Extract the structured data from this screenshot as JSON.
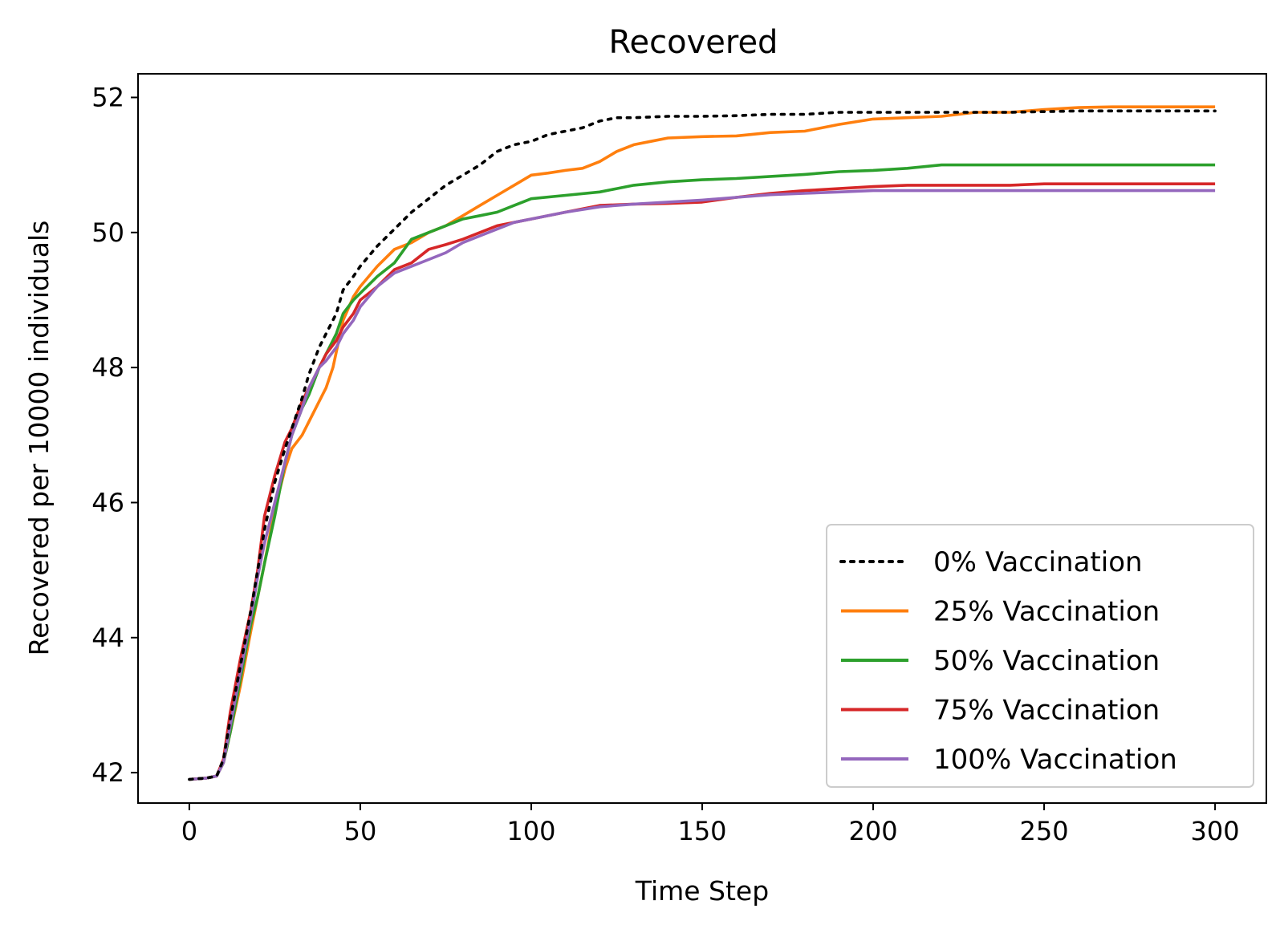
{
  "chart_data": {
    "type": "line",
    "title": "Recovered",
    "xlabel": "Time Step",
    "ylabel": "Recovered per 10000 individuals",
    "xlim": [
      -15,
      315
    ],
    "ylim": [
      41.55,
      52.35
    ],
    "xticks": [
      0,
      50,
      100,
      150,
      200,
      250,
      300
    ],
    "yticks": [
      42,
      44,
      46,
      48,
      50,
      52
    ],
    "grid": false,
    "legend_position": "lower-right",
    "series": [
      {
        "name": "0% Vaccination",
        "color": "#000000",
        "dash": "dotted",
        "x": [
          0,
          5,
          8,
          10,
          12,
          15,
          18,
          20,
          22,
          25,
          28,
          30,
          33,
          35,
          38,
          40,
          43,
          45,
          48,
          50,
          55,
          60,
          65,
          70,
          75,
          80,
          85,
          90,
          95,
          100,
          105,
          110,
          115,
          120,
          125,
          130,
          140,
          150,
          160,
          170,
          180,
          190,
          200,
          220,
          240,
          260,
          280,
          300
        ],
        "y": [
          41.9,
          41.92,
          41.95,
          42.2,
          42.8,
          43.6,
          44.4,
          45.0,
          45.6,
          46.3,
          46.8,
          47.1,
          47.55,
          47.9,
          48.3,
          48.5,
          48.8,
          49.15,
          49.35,
          49.5,
          49.8,
          50.05,
          50.3,
          50.5,
          50.7,
          50.85,
          51.0,
          51.2,
          51.3,
          51.35,
          51.45,
          51.5,
          51.55,
          51.65,
          51.7,
          51.7,
          51.72,
          51.72,
          51.73,
          51.75,
          51.75,
          51.78,
          51.78,
          51.78,
          51.78,
          51.8,
          51.8,
          51.8
        ]
      },
      {
        "name": "25% Vaccination",
        "color": "#ff7f0e",
        "dash": "solid",
        "x": [
          0,
          5,
          8,
          10,
          12,
          15,
          18,
          20,
          22,
          25,
          28,
          30,
          33,
          35,
          38,
          40,
          42,
          45,
          48,
          50,
          55,
          60,
          65,
          70,
          75,
          80,
          85,
          90,
          95,
          100,
          105,
          110,
          115,
          120,
          125,
          130,
          135,
          140,
          150,
          160,
          170,
          180,
          190,
          200,
          210,
          220,
          230,
          240,
          250,
          260,
          270,
          280,
          290,
          300
        ],
        "y": [
          41.9,
          41.92,
          41.95,
          42.15,
          42.6,
          43.3,
          44.1,
          44.6,
          45.1,
          45.9,
          46.5,
          46.8,
          47.0,
          47.2,
          47.5,
          47.7,
          48.0,
          48.7,
          49.05,
          49.2,
          49.5,
          49.75,
          49.85,
          50.0,
          50.1,
          50.25,
          50.4,
          50.55,
          50.7,
          50.85,
          50.88,
          50.92,
          50.95,
          51.05,
          51.2,
          51.3,
          51.35,
          51.4,
          51.42,
          51.43,
          51.48,
          51.5,
          51.6,
          51.68,
          51.7,
          51.72,
          51.78,
          51.78,
          51.82,
          51.85,
          51.86,
          51.86,
          51.86,
          51.86
        ]
      },
      {
        "name": "50% Vaccination",
        "color": "#2ca02c",
        "dash": "solid",
        "x": [
          0,
          5,
          8,
          10,
          12,
          15,
          18,
          20,
          22,
          25,
          28,
          30,
          33,
          35,
          38,
          40,
          43,
          45,
          48,
          50,
          55,
          60,
          65,
          70,
          75,
          80,
          85,
          90,
          95,
          100,
          110,
          120,
          125,
          130,
          140,
          150,
          160,
          170,
          180,
          190,
          200,
          210,
          220,
          240,
          260,
          280,
          300
        ],
        "y": [
          41.9,
          41.92,
          41.95,
          42.15,
          42.6,
          43.4,
          44.2,
          44.6,
          45.1,
          45.8,
          46.6,
          47.0,
          47.4,
          47.6,
          48.0,
          48.2,
          48.5,
          48.8,
          49.0,
          49.1,
          49.35,
          49.55,
          49.9,
          50.0,
          50.1,
          50.2,
          50.25,
          50.3,
          50.4,
          50.5,
          50.55,
          50.6,
          50.65,
          50.7,
          50.75,
          50.78,
          50.8,
          50.83,
          50.86,
          50.9,
          50.92,
          50.95,
          51.0,
          51.0,
          51.0,
          51.0,
          51.0
        ]
      },
      {
        "name": "75% Vaccination",
        "color": "#d62728",
        "dash": "solid",
        "x": [
          0,
          5,
          8,
          10,
          12,
          15,
          18,
          20,
          22,
          25,
          28,
          30,
          33,
          35,
          38,
          40,
          43,
          45,
          48,
          50,
          55,
          60,
          65,
          70,
          75,
          80,
          85,
          90,
          95,
          100,
          110,
          120,
          130,
          140,
          150,
          160,
          170,
          180,
          190,
          200,
          210,
          220,
          240,
          250,
          260,
          280,
          300
        ],
        "y": [
          41.9,
          41.92,
          41.95,
          42.2,
          42.9,
          43.7,
          44.4,
          45.0,
          45.8,
          46.4,
          46.9,
          47.1,
          47.5,
          47.7,
          48.0,
          48.2,
          48.4,
          48.6,
          48.8,
          49.0,
          49.2,
          49.45,
          49.55,
          49.75,
          49.82,
          49.9,
          50.0,
          50.1,
          50.15,
          50.2,
          50.3,
          50.4,
          50.42,
          50.43,
          50.45,
          50.52,
          50.58,
          50.62,
          50.65,
          50.68,
          50.7,
          50.7,
          50.7,
          50.72,
          50.72,
          50.72,
          50.72
        ]
      },
      {
        "name": "100% Vaccination",
        "color": "#9467bd",
        "dash": "solid",
        "x": [
          0,
          5,
          8,
          10,
          12,
          15,
          18,
          20,
          22,
          25,
          28,
          30,
          33,
          35,
          38,
          40,
          43,
          45,
          48,
          50,
          55,
          60,
          65,
          70,
          75,
          80,
          85,
          90,
          95,
          100,
          110,
          120,
          130,
          140,
          150,
          160,
          170,
          180,
          190,
          200,
          220,
          240,
          260,
          280,
          300
        ],
        "y": [
          41.9,
          41.92,
          41.95,
          42.15,
          42.7,
          43.5,
          44.3,
          44.9,
          45.4,
          46.0,
          46.6,
          47.0,
          47.4,
          47.7,
          48.0,
          48.1,
          48.3,
          48.5,
          48.7,
          48.9,
          49.2,
          49.4,
          49.5,
          49.6,
          49.7,
          49.85,
          49.95,
          50.05,
          50.15,
          50.2,
          50.3,
          50.38,
          50.42,
          50.45,
          50.48,
          50.52,
          50.56,
          50.58,
          50.6,
          50.62,
          50.62,
          50.62,
          50.62,
          50.62,
          50.62
        ]
      }
    ]
  }
}
